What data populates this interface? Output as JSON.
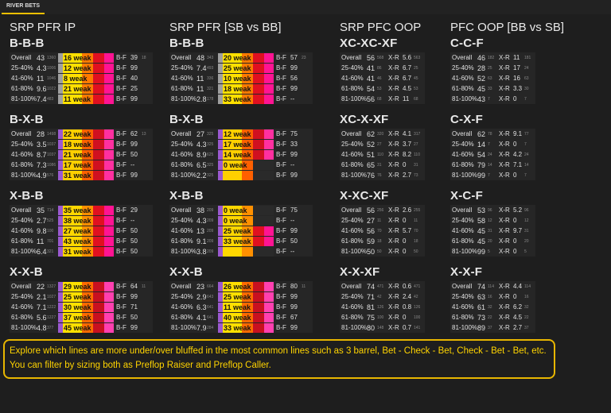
{
  "tab": "RIVER BETS",
  "note": "Explore which lines are more under/over bluffed in the most common lines such as 3 barrel, Bet - Check - Bet, Check - Bet - Bet, etc. You can filter by sizing both as Preflop Raiser and Preflop Caller.",
  "row_labels": [
    "Overall",
    "25-40%",
    "41-60%",
    "61-80%",
    "81-100%"
  ],
  "columns": [
    {
      "title": "SRP PFR IP",
      "groups": [
        {
          "title": "B-B-B",
          "rows": [
            {
              "val": "43",
              "sm": "1360",
              "w": "16",
              "k": "B-F",
              "v2": "39",
              "s2": "18"
            },
            {
              "val": "4.3",
              "sm": "1006",
              "w": "12",
              "k": "B-F",
              "v2": "99",
              "s2": ""
            },
            {
              "val": "11",
              "sm": "1046",
              "w": "8",
              "k": "B-F",
              "v2": "40",
              "s2": ""
            },
            {
              "val": "9.6",
              "sm": "1022",
              "w": "21",
              "k": "B-F",
              "v2": "25",
              "s2": ""
            },
            {
              "val": "7.4",
              "sm": "483",
              "w": "11",
              "k": "B-F",
              "v2": "99",
              "s2": ""
            }
          ]
        },
        {
          "title": "B-X-B",
          "rows": [
            {
              "val": "28",
              "sm": "1498",
              "w": "22",
              "k": "B-F",
              "v2": "62",
              "s2": "13"
            },
            {
              "val": "3.5",
              "sm": "1037",
              "w": "18",
              "k": "B-F",
              "v2": "99",
              "s2": ""
            },
            {
              "val": "8.7",
              "sm": "1037",
              "w": "21",
              "k": "B-F",
              "v2": "50",
              "s2": ""
            },
            {
              "val": "7.3",
              "sm": "1086",
              "w": "17",
              "k": "B-F",
              "v2": "--",
              "s2": ""
            },
            {
              "val": "4.9",
              "sm": "576",
              "w": "31",
              "k": "B-F",
              "v2": "99",
              "s2": ""
            }
          ]
        },
        {
          "title": "X-B-B",
          "rows": [
            {
              "val": "35",
              "sm": "714",
              "w": "35",
              "k": "B-F",
              "v2": "29",
              "s2": ""
            },
            {
              "val": "2.7",
              "sm": "525",
              "w": "38",
              "k": "B-F",
              "v2": "--",
              "s2": ""
            },
            {
              "val": "9.8",
              "sm": "100",
              "w": "27",
              "k": "B-F",
              "v2": "50",
              "s2": ""
            },
            {
              "val": "11",
              "sm": "701",
              "w": "43",
              "k": "B-F",
              "v2": "50",
              "s2": ""
            },
            {
              "val": "6.4",
              "sm": "321",
              "w": "31",
              "k": "B-F",
              "v2": "50",
              "s2": ""
            }
          ]
        },
        {
          "title": "X-X-B",
          "rows": [
            {
              "val": "22",
              "sm": "1327",
              "w": "29",
              "k": "B-F",
              "v2": "64",
              "s2": "11"
            },
            {
              "val": "2.1",
              "sm": "1027",
              "w": "25",
              "k": "B-F",
              "v2": "99",
              "s2": ""
            },
            {
              "val": "7.1",
              "sm": "1222",
              "w": "30",
              "k": "B-F",
              "v2": "71",
              "s2": ""
            },
            {
              "val": "5.6",
              "sm": "1227",
              "w": "37",
              "k": "B-F",
              "v2": "50",
              "s2": ""
            },
            {
              "val": "4.8",
              "sm": "377",
              "w": "45",
              "k": "B-F",
              "v2": "99",
              "s2": ""
            }
          ]
        }
      ]
    },
    {
      "title": "SRP PFR [SB vs BB]",
      "groups": [
        {
          "title": "B-B-B",
          "rows": [
            {
              "val": "48",
              "sm": "343",
              "w": "20",
              "k": "B-F",
              "v2": "57",
              "s2": "23"
            },
            {
              "val": "7.4",
              "sm": "493",
              "w": "25",
              "k": "B-F",
              "v2": "99",
              "s2": ""
            },
            {
              "val": "11",
              "sm": "336",
              "w": "10",
              "k": "B-F",
              "v2": "56",
              "s2": ""
            },
            {
              "val": "11",
              "sm": "321",
              "w": "18",
              "k": "B-F",
              "v2": "99",
              "s2": ""
            },
            {
              "val": "2.8",
              "sm": "178",
              "w": "33",
              "k": "B-F",
              "v2": "--",
              "s2": ""
            }
          ]
        },
        {
          "title": "B-X-B",
          "rows": [
            {
              "val": "27",
              "sm": "325",
              "w": "12",
              "k": "B-F",
              "v2": "75",
              "s2": ""
            },
            {
              "val": "4.3",
              "sm": "325",
              "w": "17",
              "k": "B-F",
              "v2": "33",
              "s2": ""
            },
            {
              "val": "8.9",
              "sm": "625",
              "w": "14",
              "k": "B-F",
              "v2": "99",
              "s2": ""
            },
            {
              "val": "6.5",
              "sm": "325",
              "w": "0",
              "k": "B-F",
              "v2": "--",
              "s2": ""
            },
            {
              "val": "2.2",
              "sm": "325",
              "w": "",
              "k": "B-F",
              "v2": "99",
              "s2": ""
            }
          ]
        },
        {
          "title": "X-B-B",
          "rows": [
            {
              "val": "38",
              "sm": "209",
              "w": "0",
              "k": "B-F",
              "v2": "75",
              "s2": ""
            },
            {
              "val": "4.3",
              "sm": "209",
              "w": "0",
              "k": "B-F",
              "v2": "--",
              "s2": ""
            },
            {
              "val": "13",
              "sm": "209",
              "w": "25",
              "k": "B-F",
              "v2": "99",
              "s2": ""
            },
            {
              "val": "9.1",
              "sm": "209",
              "w": "33",
              "k": "B-F",
              "v2": "50",
              "s2": ""
            },
            {
              "val": "3.8",
              "sm": "209",
              "w": "",
              "k": "B-F",
              "v2": "--",
              "s2": ""
            }
          ]
        },
        {
          "title": "X-X-B",
          "rows": [
            {
              "val": "23",
              "sm": "664",
              "w": "26",
              "k": "B-F",
              "v2": "80",
              "s2": "11"
            },
            {
              "val": "2.9",
              "sm": "643",
              "w": "25",
              "k": "B-F",
              "v2": "99",
              "s2": ""
            },
            {
              "val": "6.3",
              "sm": "641",
              "w": "11",
              "k": "B-F",
              "v2": "99",
              "s2": ""
            },
            {
              "val": "4.1",
              "sm": "641",
              "w": "40",
              "k": "B-F",
              "v2": "67",
              "s2": ""
            },
            {
              "val": "7.9",
              "sm": "284",
              "w": "33",
              "k": "B-F",
              "v2": "99",
              "s2": ""
            }
          ]
        }
      ]
    },
    {
      "title": "SRP PFC OOP",
      "groups": [
        {
          "title": "XC-XC-XF",
          "rows": [
            {
              "val": "56",
              "sm": "568",
              "k": "X-R",
              "v2": "5.6",
              "s2": "563"
            },
            {
              "val": "41",
              "sm": "86",
              "k": "X-R",
              "v2": "6.7",
              "s2": "25"
            },
            {
              "val": "41",
              "sm": "46",
              "k": "X-R",
              "v2": "6.7",
              "s2": "45"
            },
            {
              "val": "54",
              "sm": "53",
              "k": "X-R",
              "v2": "4.5",
              "s2": "53"
            },
            {
              "val": "56",
              "sm": "68",
              "k": "X-R",
              "v2": "11",
              "s2": "68"
            }
          ]
        },
        {
          "title": "XC-X-XF",
          "rows": [
            {
              "val": "62",
              "sm": "320",
              "k": "X-R",
              "v2": "4.1",
              "s2": "317"
            },
            {
              "val": "52",
              "sm": "27",
              "k": "X-R",
              "v2": "3.7",
              "s2": "27"
            },
            {
              "val": "51",
              "sm": "110",
              "k": "X-R",
              "v2": "8.2",
              "s2": "110"
            },
            {
              "val": "65",
              "sm": "31",
              "k": "X-R",
              "v2": "0",
              "s2": "31"
            },
            {
              "val": "76",
              "sm": "76",
              "k": "X-R",
              "v2": "2.7",
              "s2": "73"
            }
          ]
        },
        {
          "title": "X-XC-XF",
          "rows": [
            {
              "val": "56",
              "sm": "256",
              "k": "X-R",
              "v2": "2.6",
              "s2": "255"
            },
            {
              "val": "27",
              "sm": "11",
              "k": "X-R",
              "v2": "0",
              "s2": "11"
            },
            {
              "val": "56",
              "sm": "70",
              "k": "X-R",
              "v2": "5.7",
              "s2": "70"
            },
            {
              "val": "59",
              "sm": "18",
              "k": "X-R",
              "v2": "0",
              "s2": "18"
            },
            {
              "val": "50",
              "sm": "50",
              "k": "X-R",
              "v2": "0",
              "s2": "50"
            }
          ]
        },
        {
          "title": "X-X-XF",
          "rows": [
            {
              "val": "74",
              "sm": "471",
              "k": "X-R",
              "v2": "0.6",
              "s2": "471"
            },
            {
              "val": "71",
              "sm": "42",
              "k": "X-R",
              "v2": "2.4",
              "s2": "42"
            },
            {
              "val": "81",
              "sm": "126",
              "k": "X-R",
              "v2": "0.8",
              "s2": "126"
            },
            {
              "val": "75",
              "sm": "100",
              "k": "X-R",
              "v2": "0",
              "s2": "100"
            },
            {
              "val": "80",
              "sm": "148",
              "k": "X-R",
              "v2": "0.7",
              "s2": "141"
            }
          ]
        }
      ]
    },
    {
      "title": "PFC OOP [BB vs SB]",
      "groups": [
        {
          "title": "C-C-F",
          "rows": [
            {
              "val": "46",
              "sm": "182",
              "k": "X-R",
              "v2": "11",
              "s2": "181"
            },
            {
              "val": "28",
              "sm": "25",
              "k": "X-R",
              "v2": "17",
              "s2": "24"
            },
            {
              "val": "52",
              "sm": "63",
              "k": "X-R",
              "v2": "16",
              "s2": "63"
            },
            {
              "val": "45",
              "sm": "33",
              "k": "X-R",
              "v2": "3.3",
              "s2": "30"
            },
            {
              "val": "43",
              "sm": "7",
              "k": "X-R",
              "v2": "0",
              "s2": "7"
            }
          ]
        },
        {
          "title": "C-X-F",
          "rows": [
            {
              "val": "62",
              "sm": "78",
              "k": "X-R",
              "v2": "9.1",
              "s2": "77"
            },
            {
              "val": "14",
              "sm": "7",
              "k": "X-R",
              "v2": "0",
              "s2": "7"
            },
            {
              "val": "54",
              "sm": "24",
              "k": "X-R",
              "v2": "4.2",
              "s2": "24"
            },
            {
              "val": "79",
              "sm": "14",
              "k": "X-R",
              "v2": "7.1",
              "s2": "14"
            },
            {
              "val": "99",
              "sm": "7",
              "k": "X-R",
              "v2": "0",
              "s2": "7"
            }
          ]
        },
        {
          "title": "X-C-F",
          "rows": [
            {
              "val": "53",
              "sm": "96",
              "k": "X-R",
              "v2": "5.2",
              "s2": "96"
            },
            {
              "val": "58",
              "sm": "12",
              "k": "X-R",
              "v2": "0",
              "s2": "12"
            },
            {
              "val": "45",
              "sm": "31",
              "k": "X-R",
              "v2": "9.7",
              "s2": "31"
            },
            {
              "val": "45",
              "sm": "20",
              "k": "X-R",
              "v2": "0",
              "s2": "20"
            },
            {
              "val": "99",
              "sm": "5",
              "k": "X-R",
              "v2": "0",
              "s2": "5"
            }
          ]
        },
        {
          "title": "X-X-F",
          "rows": [
            {
              "val": "74",
              "sm": "114",
              "k": "X-R",
              "v2": "4.4",
              "s2": "114"
            },
            {
              "val": "63",
              "sm": "16",
              "k": "X-R",
              "v2": "0",
              "s2": "16"
            },
            {
              "val": "61",
              "sm": "32",
              "k": "X-R",
              "v2": "6.2",
              "s2": "32"
            },
            {
              "val": "73",
              "sm": "22",
              "k": "X-R",
              "v2": "4.5",
              "s2": "22"
            },
            {
              "val": "89",
              "sm": "37",
              "k": "X-R",
              "v2": "2.7",
              "s2": "37"
            }
          ]
        }
      ]
    }
  ],
  "weak_word": "weak",
  "colors": {
    "accent": "#f5c000",
    "note": "#ffd400",
    "purple": "#9b59d0",
    "pink": "#ff1493",
    "red": "#e01020",
    "orange": "#ff7a00",
    "yellow": "#ffd700",
    "grey": "#a0a0a0"
  }
}
